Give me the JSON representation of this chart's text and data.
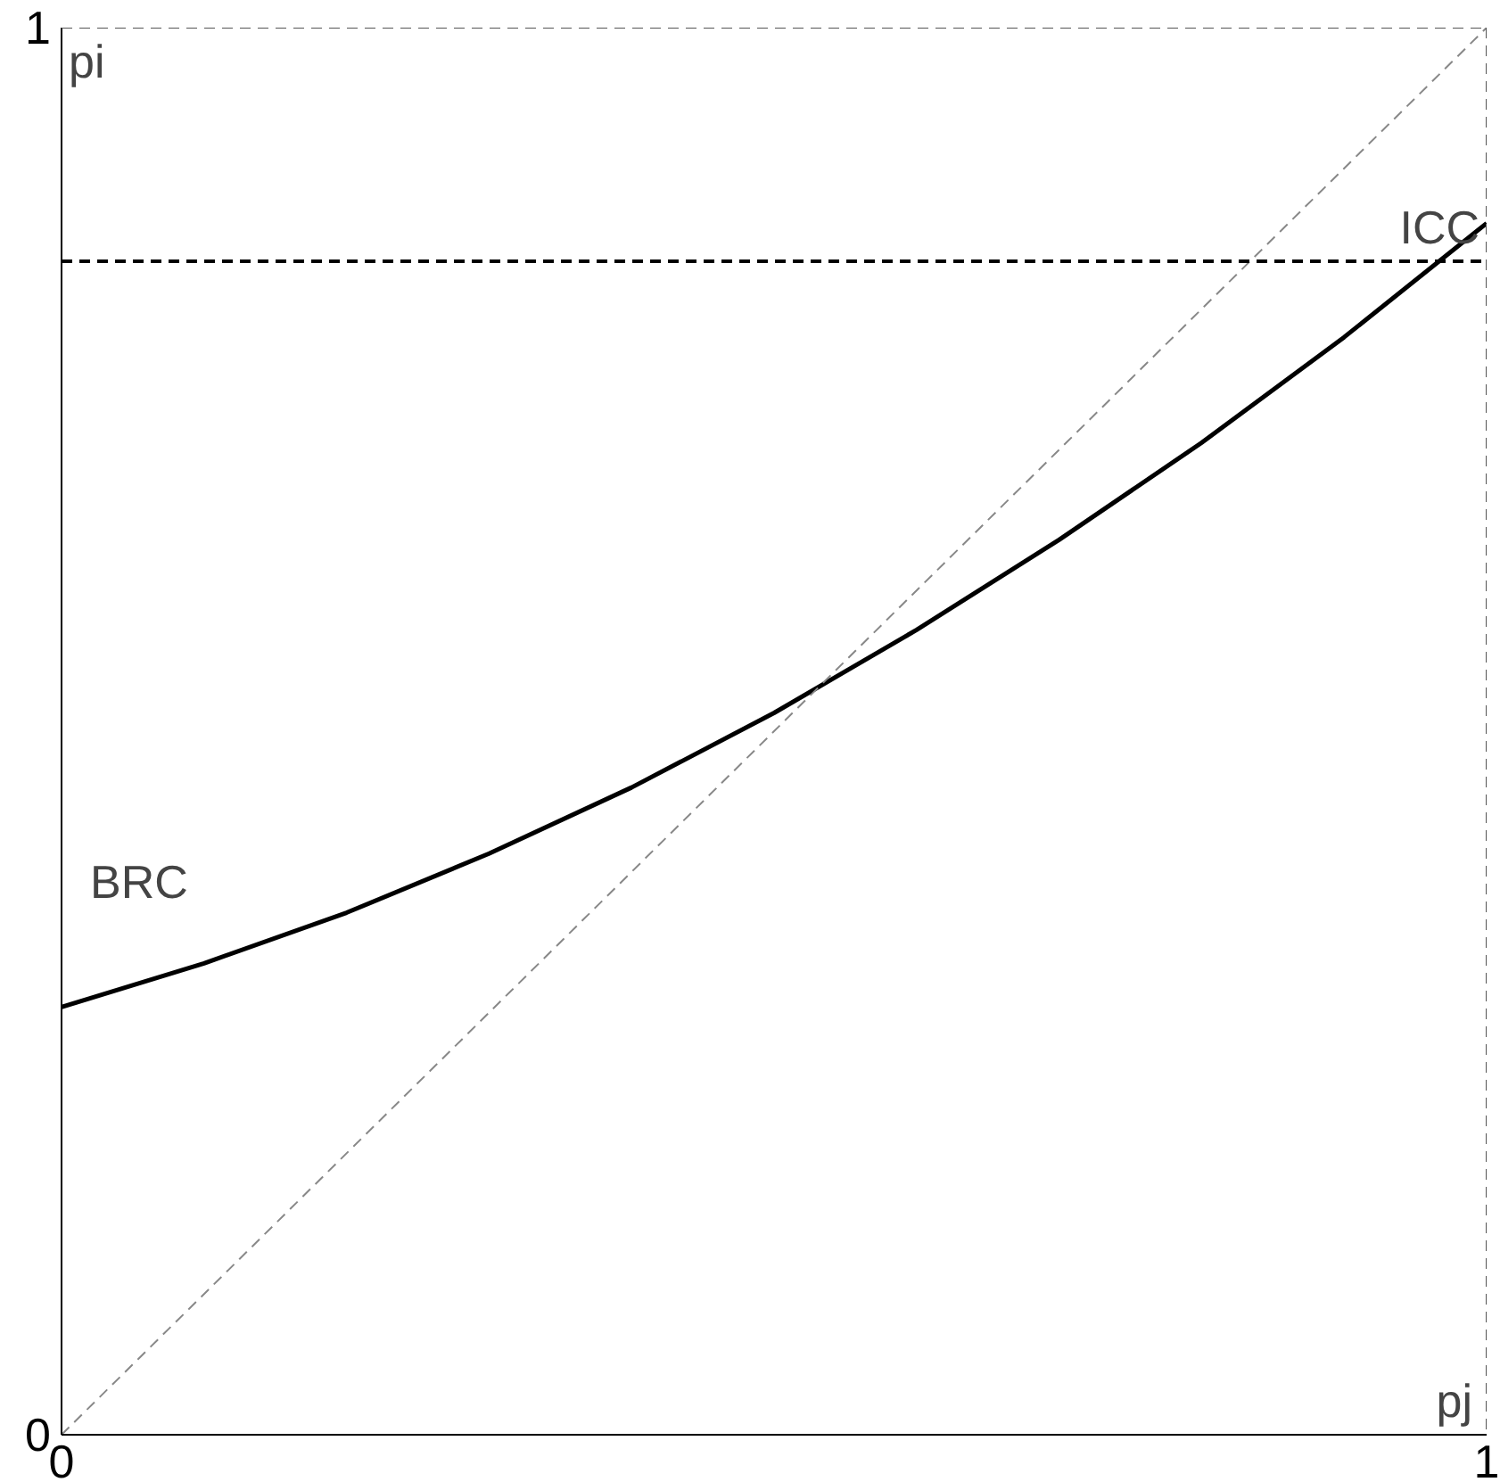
{
  "chart_data": {
    "type": "line",
    "xlabel": "pj",
    "ylabel": "pi",
    "xlim": [
      0,
      1
    ],
    "ylim": [
      0,
      1
    ],
    "xticks": [
      0,
      1
    ],
    "yticks": [
      0,
      1
    ],
    "marker": "none",
    "series": [
      {
        "name": "BRC",
        "color": "#000000",
        "line_style": "solid",
        "x": [
          0,
          0.1,
          0.2,
          0.3,
          0.4,
          0.5,
          0.6,
          0.7,
          0.8,
          0.9,
          1.0
        ],
        "values": [
          0.304,
          0.335,
          0.371,
          0.413,
          0.46,
          0.513,
          0.572,
          0.636,
          0.705,
          0.78,
          0.861
        ]
      },
      {
        "color": "#888888",
        "line_style": "dashed",
        "x": [
          0,
          1
        ],
        "values": [
          0,
          1
        ]
      }
    ],
    "ref_lines": [
      {
        "axis": "y",
        "value": 0.834,
        "label": "ICC",
        "color": "#000000",
        "line_style": "dashed"
      },
      {
        "axis": "y",
        "value": 1,
        "label": null,
        "color": "#555555",
        "line_style": "dashed"
      },
      {
        "axis": "x",
        "value": 1,
        "label": null,
        "color": "#555555",
        "line_style": "dashed"
      }
    ]
  }
}
